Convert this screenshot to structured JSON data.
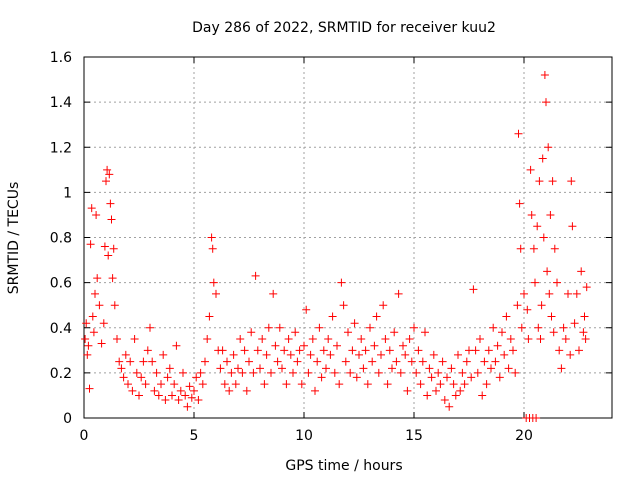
{
  "chart_data": {
    "type": "scatter",
    "title": "Day 286 of 2022, SRMTID for receiver kuu2",
    "xlabel": "GPS time / hours",
    "ylabel": "SRMTID / TECUs",
    "xlim": [
      0,
      24
    ],
    "ylim": [
      0,
      1.6
    ],
    "x_ticks": [
      0,
      5,
      10,
      15,
      20
    ],
    "x_tick_labels": [
      "0",
      "5",
      "10",
      "15",
      "20"
    ],
    "y_ticks": [
      0,
      0.2,
      0.4,
      0.6,
      0.8,
      1,
      1.2,
      1.4,
      1.6
    ],
    "y_tick_labels": [
      "0",
      "0.2",
      "0.4",
      "0.6",
      "0.8",
      "1",
      "1.2",
      "1.4",
      "1.6"
    ],
    "grid": true,
    "marker": "+",
    "point_color": "#ff0000",
    "series": [
      {
        "name": "SRMTID",
        "points": [
          [
            0.05,
            0.35
          ],
          [
            0.1,
            0.42
          ],
          [
            0.15,
            0.28
          ],
          [
            0.2,
            0.32
          ],
          [
            0.25,
            0.13
          ],
          [
            0.3,
            0.77
          ],
          [
            0.35,
            0.93
          ],
          [
            0.4,
            0.45
          ],
          [
            0.45,
            0.38
          ],
          [
            0.5,
            0.55
          ],
          [
            0.55,
            0.9
          ],
          [
            0.6,
            0.62
          ],
          [
            0.7,
            0.5
          ],
          [
            0.8,
            0.33
          ],
          [
            0.9,
            0.42
          ],
          [
            0.95,
            0.76
          ],
          [
            1.0,
            1.05
          ],
          [
            1.05,
            1.1
          ],
          [
            1.1,
            0.72
          ],
          [
            1.15,
            1.08
          ],
          [
            1.2,
            0.95
          ],
          [
            1.25,
            0.88
          ],
          [
            1.3,
            0.62
          ],
          [
            1.35,
            0.75
          ],
          [
            1.4,
            0.5
          ],
          [
            1.5,
            0.35
          ],
          [
            1.6,
            0.25
          ],
          [
            1.7,
            0.22
          ],
          [
            1.8,
            0.18
          ],
          [
            1.9,
            0.28
          ],
          [
            2.0,
            0.15
          ],
          [
            2.1,
            0.25
          ],
          [
            2.2,
            0.12
          ],
          [
            2.3,
            0.35
          ],
          [
            2.4,
            0.2
          ],
          [
            2.5,
            0.1
          ],
          [
            2.6,
            0.18
          ],
          [
            2.7,
            0.25
          ],
          [
            2.8,
            0.15
          ],
          [
            2.9,
            0.3
          ],
          [
            3.0,
            0.4
          ],
          [
            3.1,
            0.25
          ],
          [
            3.2,
            0.12
          ],
          [
            3.3,
            0.2
          ],
          [
            3.4,
            0.1
          ],
          [
            3.5,
            0.15
          ],
          [
            3.6,
            0.28
          ],
          [
            3.7,
            0.08
          ],
          [
            3.8,
            0.18
          ],
          [
            3.9,
            0.22
          ],
          [
            4.0,
            0.1
          ],
          [
            4.1,
            0.15
          ],
          [
            4.2,
            0.32
          ],
          [
            4.3,
            0.08
          ],
          [
            4.4,
            0.12
          ],
          [
            4.5,
            0.2
          ],
          [
            4.6,
            0.1
          ],
          [
            4.7,
            0.05
          ],
          [
            4.8,
            0.14
          ],
          [
            4.9,
            0.09
          ],
          [
            5.0,
            0.12
          ],
          [
            5.1,
            0.18
          ],
          [
            5.2,
            0.08
          ],
          [
            5.3,
            0.2
          ],
          [
            5.4,
            0.15
          ],
          [
            5.5,
            0.25
          ],
          [
            5.6,
            0.35
          ],
          [
            5.7,
            0.45
          ],
          [
            5.8,
            0.8
          ],
          [
            5.85,
            0.75
          ],
          [
            5.9,
            0.6
          ],
          [
            6.0,
            0.55
          ],
          [
            6.1,
            0.3
          ],
          [
            6.2,
            0.22
          ],
          [
            6.3,
            0.3
          ],
          [
            6.4,
            0.15
          ],
          [
            6.5,
            0.25
          ],
          [
            6.6,
            0.12
          ],
          [
            6.7,
            0.2
          ],
          [
            6.8,
            0.28
          ],
          [
            6.9,
            0.15
          ],
          [
            7.0,
            0.22
          ],
          [
            7.1,
            0.35
          ],
          [
            7.2,
            0.2
          ],
          [
            7.3,
            0.3
          ],
          [
            7.4,
            0.12
          ],
          [
            7.5,
            0.25
          ],
          [
            7.6,
            0.38
          ],
          [
            7.7,
            0.2
          ],
          [
            7.8,
            0.63
          ],
          [
            7.9,
            0.3
          ],
          [
            8.0,
            0.22
          ],
          [
            8.1,
            0.35
          ],
          [
            8.2,
            0.15
          ],
          [
            8.3,
            0.28
          ],
          [
            8.4,
            0.4
          ],
          [
            8.5,
            0.2
          ],
          [
            8.6,
            0.55
          ],
          [
            8.7,
            0.32
          ],
          [
            8.8,
            0.25
          ],
          [
            8.9,
            0.4
          ],
          [
            9.0,
            0.22
          ],
          [
            9.1,
            0.3
          ],
          [
            9.2,
            0.15
          ],
          [
            9.3,
            0.35
          ],
          [
            9.4,
            0.28
          ],
          [
            9.5,
            0.2
          ],
          [
            9.6,
            0.38
          ],
          [
            9.7,
            0.25
          ],
          [
            9.8,
            0.3
          ],
          [
            9.9,
            0.15
          ],
          [
            10.0,
            0.32
          ],
          [
            10.1,
            0.48
          ],
          [
            10.2,
            0.2
          ],
          [
            10.3,
            0.28
          ],
          [
            10.4,
            0.35
          ],
          [
            10.5,
            0.12
          ],
          [
            10.6,
            0.25
          ],
          [
            10.7,
            0.4
          ],
          [
            10.8,
            0.18
          ],
          [
            10.9,
            0.3
          ],
          [
            11.0,
            0.22
          ],
          [
            11.1,
            0.35
          ],
          [
            11.2,
            0.28
          ],
          [
            11.3,
            0.45
          ],
          [
            11.4,
            0.2
          ],
          [
            11.5,
            0.32
          ],
          [
            11.6,
            0.15
          ],
          [
            11.7,
            0.6
          ],
          [
            11.8,
            0.5
          ],
          [
            11.9,
            0.25
          ],
          [
            12.0,
            0.38
          ],
          [
            12.1,
            0.2
          ],
          [
            12.2,
            0.3
          ],
          [
            12.3,
            0.42
          ],
          [
            12.4,
            0.18
          ],
          [
            12.5,
            0.28
          ],
          [
            12.6,
            0.35
          ],
          [
            12.7,
            0.22
          ],
          [
            12.8,
            0.3
          ],
          [
            12.9,
            0.15
          ],
          [
            13.0,
            0.4
          ],
          [
            13.1,
            0.25
          ],
          [
            13.2,
            0.32
          ],
          [
            13.3,
            0.45
          ],
          [
            13.4,
            0.2
          ],
          [
            13.5,
            0.28
          ],
          [
            13.6,
            0.5
          ],
          [
            13.7,
            0.35
          ],
          [
            13.8,
            0.15
          ],
          [
            13.9,
            0.3
          ],
          [
            14.0,
            0.22
          ],
          [
            14.1,
            0.38
          ],
          [
            14.2,
            0.25
          ],
          [
            14.3,
            0.55
          ],
          [
            14.4,
            0.2
          ],
          [
            14.5,
            0.32
          ],
          [
            14.6,
            0.28
          ],
          [
            14.7,
            0.12
          ],
          [
            14.8,
            0.35
          ],
          [
            14.9,
            0.25
          ],
          [
            15.0,
            0.4
          ],
          [
            15.1,
            0.2
          ],
          [
            15.2,
            0.3
          ],
          [
            15.3,
            0.15
          ],
          [
            15.4,
            0.25
          ],
          [
            15.5,
            0.38
          ],
          [
            15.6,
            0.1
          ],
          [
            15.7,
            0.22
          ],
          [
            15.8,
            0.18
          ],
          [
            15.9,
            0.28
          ],
          [
            16.0,
            0.12
          ],
          [
            16.1,
            0.2
          ],
          [
            16.2,
            0.15
          ],
          [
            16.3,
            0.25
          ],
          [
            16.4,
            0.08
          ],
          [
            16.5,
            0.18
          ],
          [
            16.6,
            0.05
          ],
          [
            16.7,
            0.22
          ],
          [
            16.8,
            0.15
          ],
          [
            16.9,
            0.1
          ],
          [
            17.0,
            0.28
          ],
          [
            17.1,
            0.12
          ],
          [
            17.2,
            0.2
          ],
          [
            17.3,
            0.15
          ],
          [
            17.4,
            0.25
          ],
          [
            17.5,
            0.3
          ],
          [
            17.6,
            0.18
          ],
          [
            17.7,
            0.57
          ],
          [
            17.8,
            0.3
          ],
          [
            17.9,
            0.2
          ],
          [
            18.0,
            0.35
          ],
          [
            18.1,
            0.1
          ],
          [
            18.2,
            0.25
          ],
          [
            18.3,
            0.15
          ],
          [
            18.4,
            0.3
          ],
          [
            18.5,
            0.22
          ],
          [
            18.6,
            0.4
          ],
          [
            18.7,
            0.25
          ],
          [
            18.8,
            0.32
          ],
          [
            18.9,
            0.18
          ],
          [
            19.0,
            0.38
          ],
          [
            19.1,
            0.28
          ],
          [
            19.2,
            0.45
          ],
          [
            19.3,
            0.22
          ],
          [
            19.4,
            0.35
          ],
          [
            19.5,
            0.3
          ],
          [
            19.6,
            0.2
          ],
          [
            19.7,
            0.5
          ],
          [
            19.75,
            1.26
          ],
          [
            19.8,
            0.95
          ],
          [
            19.85,
            0.75
          ],
          [
            19.9,
            0.4
          ],
          [
            20.0,
            0.55
          ],
          [
            20.1,
            0.0
          ],
          [
            20.15,
            0.48
          ],
          [
            20.2,
            0.35
          ],
          [
            20.25,
            0.0
          ],
          [
            20.3,
            1.1
          ],
          [
            20.35,
            0.9
          ],
          [
            20.4,
            0.0
          ],
          [
            20.45,
            0.75
          ],
          [
            20.5,
            0.6
          ],
          [
            20.55,
            0.0
          ],
          [
            20.6,
            0.85
          ],
          [
            20.65,
            0.4
          ],
          [
            20.7,
            1.05
          ],
          [
            20.75,
            0.35
          ],
          [
            20.8,
            0.5
          ],
          [
            20.85,
            1.15
          ],
          [
            20.9,
            0.8
          ],
          [
            20.95,
            1.52
          ],
          [
            21.0,
            1.4
          ],
          [
            21.05,
            0.65
          ],
          [
            21.1,
            1.2
          ],
          [
            21.15,
            0.55
          ],
          [
            21.2,
            0.9
          ],
          [
            21.25,
            0.45
          ],
          [
            21.3,
            1.05
          ],
          [
            21.35,
            0.38
          ],
          [
            21.4,
            0.75
          ],
          [
            21.5,
            0.6
          ],
          [
            21.6,
            0.3
          ],
          [
            21.7,
            0.22
          ],
          [
            21.8,
            0.4
          ],
          [
            21.9,
            0.35
          ],
          [
            22.0,
            0.55
          ],
          [
            22.1,
            0.28
          ],
          [
            22.15,
            1.05
          ],
          [
            22.2,
            0.85
          ],
          [
            22.3,
            0.42
          ],
          [
            22.4,
            0.55
          ],
          [
            22.5,
            0.3
          ],
          [
            22.6,
            0.65
          ],
          [
            22.7,
            0.38
          ],
          [
            22.75,
            0.45
          ],
          [
            22.8,
            0.35
          ],
          [
            22.85,
            0.58
          ]
        ]
      }
    ]
  }
}
